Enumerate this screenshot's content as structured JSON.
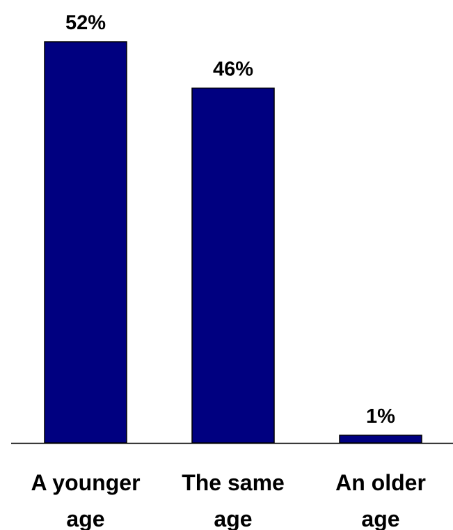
{
  "chart_data": {
    "type": "bar",
    "categories": [
      [
        "A younger",
        "age"
      ],
      [
        "The same",
        "age"
      ],
      [
        "An older",
        "age"
      ]
    ],
    "values": [
      52,
      46,
      1
    ],
    "value_labels": [
      "52%",
      "46%",
      "1%"
    ],
    "title": "",
    "xlabel": "",
    "ylabel": "",
    "ylim": [
      0,
      52
    ],
    "grid": false,
    "legend": "none",
    "colors": {
      "bar_fill": "#000080",
      "bar_stroke": "#000000",
      "axis": "#000000"
    }
  }
}
